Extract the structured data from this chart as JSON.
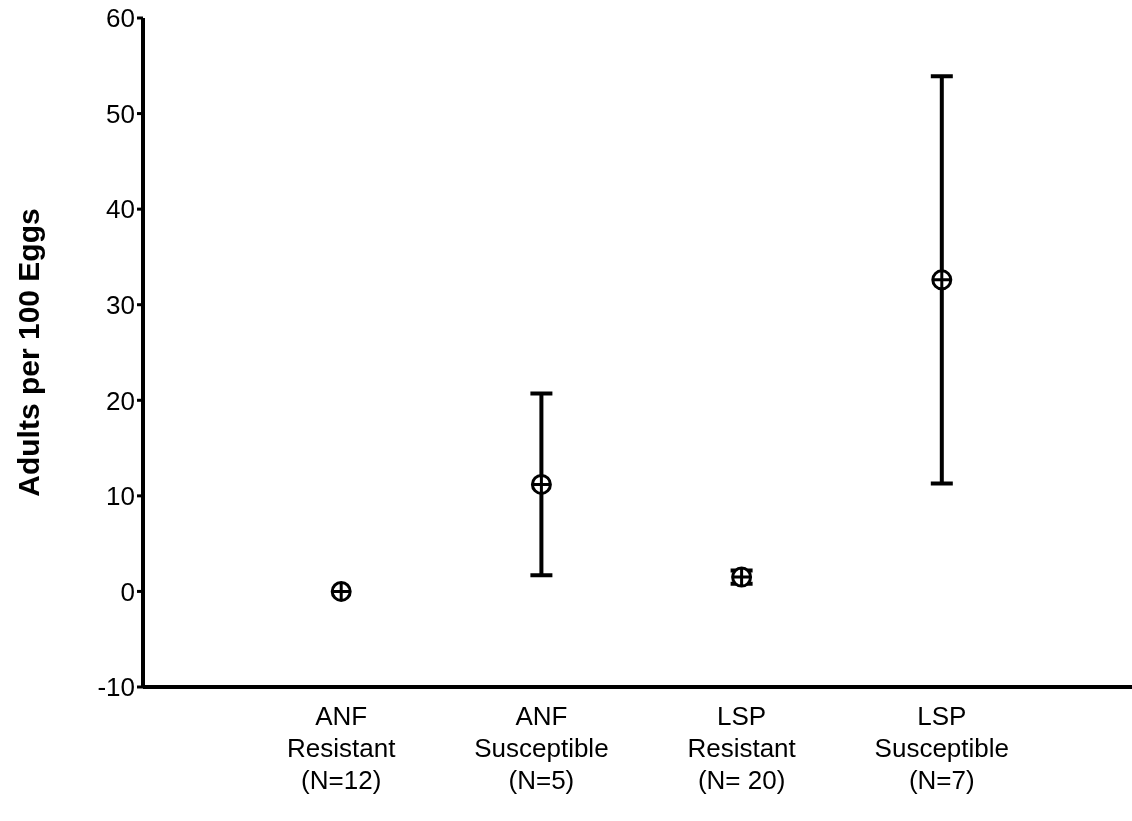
{
  "chart_data": {
    "type": "scatter",
    "ylabel": "Adults per 100 Eggs",
    "categories": [
      "ANF\nResistant\n(N=12)",
      "ANF\nSusceptible\n(N=5)",
      "LSP\nResistant\n(N= 20)",
      "LSP\nSusceptible\n(N=7)"
    ],
    "values": [
      0,
      11.2,
      1.5,
      32.6
    ],
    "errors": [
      null,
      9.5,
      0.7,
      21.3
    ],
    "color": "#000000",
    "marker": "circle",
    "ylim": [
      -10,
      60
    ],
    "yticks": [
      -10,
      0,
      10,
      20,
      30,
      40,
      50,
      60
    ],
    "grid": false,
    "legend": false
  }
}
